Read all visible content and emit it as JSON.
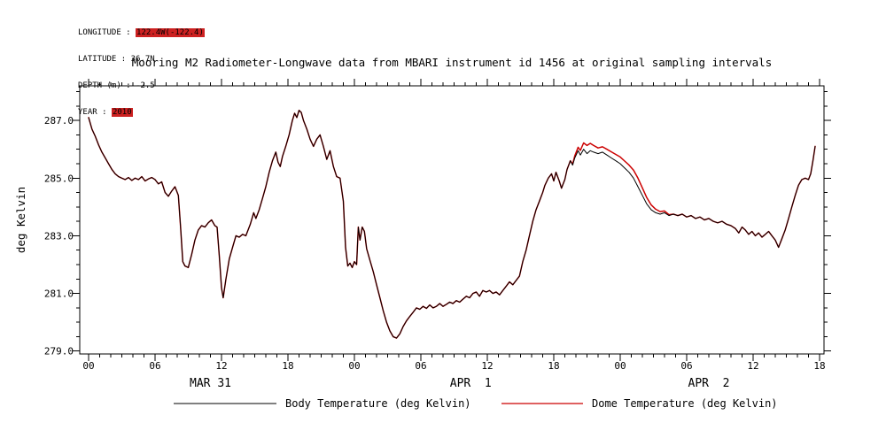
{
  "header": {
    "lines": [
      {
        "label": "LONGITUDE :",
        "value": "122.4W(-122.4)",
        "highlight": true
      },
      {
        "label": "LATITUDE :",
        "value": "36.7N",
        "highlight": false
      },
      {
        "label": "DEPTH (m) :",
        "value": "-2.5",
        "highlight": false
      },
      {
        "label": "YEAR :",
        "value": "2010",
        "highlight": true
      }
    ]
  },
  "colors": {
    "body_line": "#000000",
    "dome_line": "#cc0000",
    "highlight": "#cd2121",
    "frame": "#000000"
  },
  "chart_data": {
    "type": "line",
    "title": "Mooring M2 Radiometer-Longwave data from MBARI instrument id 1456 at original sampling intervals",
    "xlabel": "",
    "ylabel": "deg Kelvin",
    "x_unit": "hours since 2010-03-31 00:00",
    "xlim": [
      -0.8,
      66.4
    ],
    "ylim": [
      278.9,
      288.2
    ],
    "x_minor_step": 1,
    "y_minor_step": 0.5,
    "grid": false,
    "legend_position": "bottom",
    "x_major_ticks": [
      {
        "t": 0,
        "label": "00"
      },
      {
        "t": 6,
        "label": "06"
      },
      {
        "t": 12,
        "label": "12"
      },
      {
        "t": 18,
        "label": "18"
      },
      {
        "t": 24,
        "label": "00"
      },
      {
        "t": 30,
        "label": "06"
      },
      {
        "t": 36,
        "label": "12"
      },
      {
        "t": 42,
        "label": "18"
      },
      {
        "t": 48,
        "label": "00"
      },
      {
        "t": 54,
        "label": "06"
      },
      {
        "t": 60,
        "label": "12"
      },
      {
        "t": 66,
        "label": "18"
      }
    ],
    "y_major_ticks": [
      {
        "v": 279,
        "label": "279.0"
      },
      {
        "v": 281,
        "label": "281.0"
      },
      {
        "v": 283,
        "label": "283.0"
      },
      {
        "v": 285,
        "label": "285.0"
      },
      {
        "v": 287,
        "label": "287.0"
      }
    ],
    "day_labels": [
      {
        "t": 11,
        "label": "MAR 31"
      },
      {
        "t": 34.5,
        "label": "APR  1"
      },
      {
        "t": 56,
        "label": "APR  2"
      }
    ],
    "series": [
      {
        "name": "Body Temperature (deg Kelvin)",
        "color": "#000000",
        "points": [
          [
            0.0,
            287.1
          ],
          [
            0.3,
            286.7
          ],
          [
            0.6,
            286.45
          ],
          [
            0.9,
            286.15
          ],
          [
            1.2,
            285.9
          ],
          [
            1.5,
            285.7
          ],
          [
            1.8,
            285.5
          ],
          [
            2.1,
            285.3
          ],
          [
            2.4,
            285.15
          ],
          [
            2.7,
            285.05
          ],
          [
            3.0,
            285.0
          ],
          [
            3.3,
            284.95
          ],
          [
            3.6,
            285.02
          ],
          [
            3.9,
            284.92
          ],
          [
            4.2,
            285.0
          ],
          [
            4.5,
            284.95
          ],
          [
            4.8,
            285.05
          ],
          [
            5.1,
            284.9
          ],
          [
            5.4,
            284.97
          ],
          [
            5.7,
            285.02
          ],
          [
            6.0,
            284.95
          ],
          [
            6.3,
            284.8
          ],
          [
            6.6,
            284.87
          ],
          [
            6.9,
            284.5
          ],
          [
            7.2,
            284.37
          ],
          [
            7.5,
            284.55
          ],
          [
            7.8,
            284.7
          ],
          [
            8.1,
            284.4
          ],
          [
            8.3,
            283.3
          ],
          [
            8.5,
            282.1
          ],
          [
            8.7,
            281.95
          ],
          [
            9.0,
            281.9
          ],
          [
            9.3,
            282.35
          ],
          [
            9.6,
            282.85
          ],
          [
            9.9,
            283.2
          ],
          [
            10.2,
            283.35
          ],
          [
            10.5,
            283.3
          ],
          [
            10.8,
            283.45
          ],
          [
            11.1,
            283.55
          ],
          [
            11.4,
            283.35
          ],
          [
            11.6,
            283.3
          ],
          [
            11.8,
            282.3
          ],
          [
            12.0,
            281.2
          ],
          [
            12.15,
            280.85
          ],
          [
            12.4,
            281.5
          ],
          [
            12.7,
            282.2
          ],
          [
            13.0,
            282.6
          ],
          [
            13.3,
            283.0
          ],
          [
            13.6,
            282.95
          ],
          [
            13.9,
            283.05
          ],
          [
            14.2,
            283.0
          ],
          [
            14.6,
            283.4
          ],
          [
            14.9,
            283.8
          ],
          [
            15.1,
            283.6
          ],
          [
            15.4,
            283.9
          ],
          [
            15.7,
            284.3
          ],
          [
            16.0,
            284.7
          ],
          [
            16.3,
            285.2
          ],
          [
            16.6,
            285.6
          ],
          [
            16.9,
            285.9
          ],
          [
            17.1,
            285.55
          ],
          [
            17.3,
            285.4
          ],
          [
            17.5,
            285.75
          ],
          [
            17.8,
            286.1
          ],
          [
            18.1,
            286.5
          ],
          [
            18.4,
            287.0
          ],
          [
            18.6,
            287.25
          ],
          [
            18.8,
            287.1
          ],
          [
            19.0,
            287.35
          ],
          [
            19.2,
            287.28
          ],
          [
            19.4,
            287.0
          ],
          [
            19.7,
            286.7
          ],
          [
            20.0,
            286.35
          ],
          [
            20.3,
            286.1
          ],
          [
            20.6,
            286.35
          ],
          [
            20.9,
            286.5
          ],
          [
            21.2,
            286.1
          ],
          [
            21.5,
            285.65
          ],
          [
            21.8,
            285.95
          ],
          [
            22.1,
            285.4
          ],
          [
            22.4,
            285.05
          ],
          [
            22.7,
            285.0
          ],
          [
            23.0,
            284.2
          ],
          [
            23.2,
            282.6
          ],
          [
            23.4,
            281.95
          ],
          [
            23.6,
            282.05
          ],
          [
            23.8,
            281.9
          ],
          [
            24.0,
            282.1
          ],
          [
            24.2,
            282.0
          ],
          [
            24.35,
            283.3
          ],
          [
            24.5,
            282.85
          ],
          [
            24.7,
            283.3
          ],
          [
            24.9,
            283.15
          ],
          [
            25.1,
            282.55
          ],
          [
            25.4,
            282.15
          ],
          [
            25.7,
            281.75
          ],
          [
            26.0,
            281.3
          ],
          [
            26.3,
            280.85
          ],
          [
            26.6,
            280.4
          ],
          [
            26.9,
            280.0
          ],
          [
            27.2,
            279.7
          ],
          [
            27.5,
            279.5
          ],
          [
            27.8,
            279.45
          ],
          [
            28.1,
            279.6
          ],
          [
            28.4,
            279.85
          ],
          [
            28.7,
            280.05
          ],
          [
            29.0,
            280.2
          ],
          [
            29.3,
            280.35
          ],
          [
            29.6,
            280.5
          ],
          [
            29.9,
            280.45
          ],
          [
            30.2,
            280.55
          ],
          [
            30.5,
            280.48
          ],
          [
            30.8,
            280.6
          ],
          [
            31.1,
            280.5
          ],
          [
            31.4,
            280.55
          ],
          [
            31.7,
            280.65
          ],
          [
            32.0,
            280.55
          ],
          [
            32.3,
            280.62
          ],
          [
            32.6,
            280.7
          ],
          [
            32.9,
            280.65
          ],
          [
            33.2,
            280.75
          ],
          [
            33.5,
            280.7
          ],
          [
            33.8,
            280.8
          ],
          [
            34.1,
            280.9
          ],
          [
            34.4,
            280.85
          ],
          [
            34.7,
            281.0
          ],
          [
            35.0,
            281.05
          ],
          [
            35.3,
            280.9
          ],
          [
            35.6,
            281.1
          ],
          [
            35.9,
            281.05
          ],
          [
            36.2,
            281.1
          ],
          [
            36.5,
            281.0
          ],
          [
            36.8,
            281.05
          ],
          [
            37.1,
            280.95
          ],
          [
            37.4,
            281.1
          ],
          [
            37.7,
            281.25
          ],
          [
            38.0,
            281.4
          ],
          [
            38.3,
            281.3
          ],
          [
            38.6,
            281.45
          ],
          [
            38.9,
            281.6
          ],
          [
            39.2,
            282.1
          ],
          [
            39.5,
            282.5
          ],
          [
            39.8,
            283.0
          ],
          [
            40.1,
            283.5
          ],
          [
            40.4,
            283.9
          ],
          [
            40.7,
            284.2
          ],
          [
            41.0,
            284.5
          ],
          [
            41.2,
            284.75
          ],
          [
            41.5,
            285.0
          ],
          [
            41.8,
            285.15
          ],
          [
            42.0,
            284.9
          ],
          [
            42.2,
            285.2
          ],
          [
            42.5,
            284.9
          ],
          [
            42.7,
            284.65
          ],
          [
            43.0,
            284.95
          ],
          [
            43.2,
            285.3
          ],
          [
            43.5,
            285.6
          ],
          [
            43.7,
            285.45
          ],
          [
            43.9,
            285.7
          ],
          [
            44.2,
            285.95
          ],
          [
            44.4,
            285.8
          ],
          [
            44.7,
            286.0
          ],
          [
            45.0,
            285.85
          ],
          [
            45.3,
            285.95
          ],
          [
            45.6,
            285.9
          ],
          [
            46.0,
            285.85
          ],
          [
            46.4,
            285.9
          ],
          [
            46.8,
            285.8
          ],
          [
            47.2,
            285.7
          ],
          [
            47.6,
            285.6
          ],
          [
            48.0,
            285.5
          ],
          [
            48.4,
            285.35
          ],
          [
            48.8,
            285.2
          ],
          [
            49.2,
            285.0
          ],
          [
            49.6,
            284.7
          ],
          [
            50.0,
            284.4
          ],
          [
            50.4,
            284.1
          ],
          [
            50.8,
            283.9
          ],
          [
            51.2,
            283.8
          ],
          [
            51.6,
            283.75
          ],
          [
            52.0,
            283.8
          ],
          [
            52.4,
            283.7
          ],
          [
            52.8,
            283.75
          ],
          [
            53.2,
            283.7
          ],
          [
            53.6,
            283.75
          ],
          [
            54.0,
            283.65
          ],
          [
            54.4,
            283.7
          ],
          [
            54.8,
            283.6
          ],
          [
            55.2,
            283.65
          ],
          [
            55.6,
            283.55
          ],
          [
            56.0,
            283.6
          ],
          [
            56.4,
            283.5
          ],
          [
            56.8,
            283.45
          ],
          [
            57.2,
            283.5
          ],
          [
            57.6,
            283.4
          ],
          [
            58.0,
            283.35
          ],
          [
            58.4,
            283.25
          ],
          [
            58.7,
            283.1
          ],
          [
            59.0,
            283.3
          ],
          [
            59.3,
            283.2
          ],
          [
            59.6,
            283.05
          ],
          [
            59.9,
            283.15
          ],
          [
            60.2,
            283.0
          ],
          [
            60.5,
            283.1
          ],
          [
            60.8,
            282.95
          ],
          [
            61.1,
            283.05
          ],
          [
            61.4,
            283.15
          ],
          [
            61.7,
            283.0
          ],
          [
            62.0,
            282.85
          ],
          [
            62.3,
            282.6
          ],
          [
            62.6,
            282.9
          ],
          [
            62.9,
            283.2
          ],
          [
            63.2,
            283.6
          ],
          [
            63.5,
            284.0
          ],
          [
            63.8,
            284.4
          ],
          [
            64.1,
            284.75
          ],
          [
            64.4,
            284.95
          ],
          [
            64.7,
            285.0
          ],
          [
            65.0,
            284.95
          ],
          [
            65.2,
            285.15
          ],
          [
            65.4,
            285.6
          ],
          [
            65.6,
            286.1
          ]
        ]
      },
      {
        "name": "Dome Temperature (deg Kelvin)",
        "color": "#cc0000",
        "base": "Body Temperature (deg Kelvin)",
        "offset_points": [
          [
            0,
            0
          ],
          [
            43.5,
            0
          ],
          [
            44.2,
            0.12
          ],
          [
            45.0,
            0.28
          ],
          [
            46.2,
            0.18
          ],
          [
            47.5,
            0.22
          ],
          [
            48.8,
            0.25
          ],
          [
            49.6,
            0.3
          ],
          [
            50.4,
            0.22
          ],
          [
            51.2,
            0.12
          ],
          [
            52.0,
            0.06
          ],
          [
            52.8,
            0
          ]
        ]
      }
    ]
  }
}
